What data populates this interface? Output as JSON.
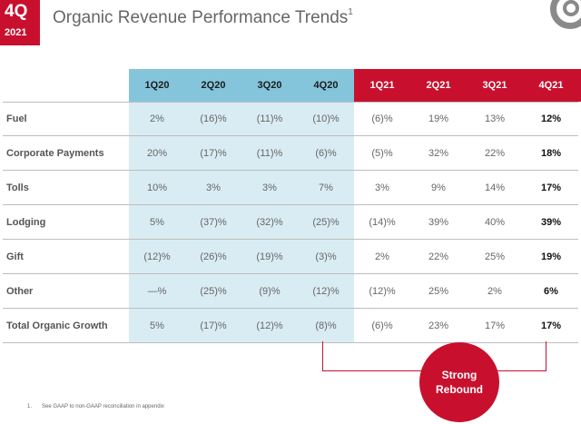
{
  "badge": {
    "quarter": "4Q",
    "year": "2021"
  },
  "title": {
    "text": "Organic Revenue Performance Trends",
    "superscript": "1"
  },
  "table": {
    "columns_blue": [
      "1Q20",
      "2Q20",
      "3Q20",
      "4Q20"
    ],
    "columns_red": [
      "1Q21",
      "2Q21",
      "3Q21",
      "4Q21"
    ],
    "rows": [
      {
        "label": "Fuel",
        "values": [
          "2%",
          "(16)%",
          "(11)%",
          "(10)%",
          "(6)%",
          "19%",
          "13%",
          "12%"
        ]
      },
      {
        "label": "Corporate Payments",
        "values": [
          "20%",
          "(17)%",
          "(11)%",
          "(6)%",
          "(5)%",
          "32%",
          "22%",
          "18%"
        ]
      },
      {
        "label": "Tolls",
        "values": [
          "10%",
          "3%",
          "3%",
          "7%",
          "3%",
          "9%",
          "14%",
          "17%"
        ]
      },
      {
        "label": "Lodging",
        "values": [
          "5%",
          "(37)%",
          "(32)%",
          "(25)%",
          "(14)%",
          "39%",
          "40%",
          "39%"
        ]
      },
      {
        "label": "Gift",
        "values": [
          "(12)%",
          "(26)%",
          "(19)%",
          "(3)%",
          "2%",
          "22%",
          "25%",
          "19%"
        ]
      },
      {
        "label": "Other",
        "values": [
          "—%",
          "(25)%",
          "(9)%",
          "(12)%",
          "(12)%",
          "25%",
          "2%",
          "6%"
        ]
      },
      {
        "label": "Total Organic Growth",
        "values": [
          "5%",
          "(17)%",
          "(12)%",
          "(8)%",
          "(6)%",
          "23%",
          "17%",
          "17%"
        ]
      }
    ]
  },
  "callout": {
    "line1": "Strong",
    "line2": "Rebound"
  },
  "footnote": {
    "number": "1.",
    "text": "See GAAP to non-GAAP reconciliation in appendix"
  },
  "colors": {
    "brand_red": "#c8102e",
    "blue_header": "#84c5dc",
    "blue_fill": "#d9ecf3"
  }
}
